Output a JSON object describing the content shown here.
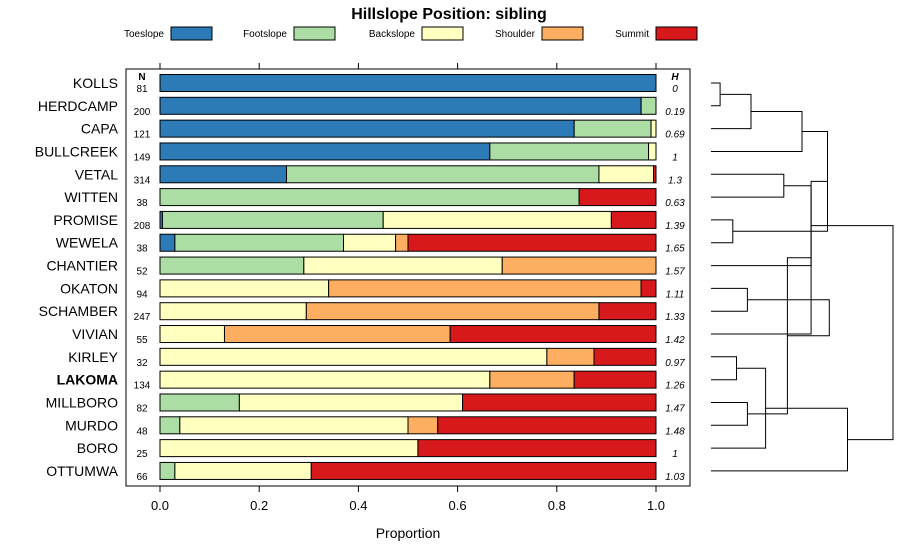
{
  "chart_data": {
    "type": "bar",
    "stacked": true,
    "orientation": "horizontal",
    "title": "Hillslope Position: sibling",
    "xlabel": "Proportion",
    "xlim": [
      0,
      1
    ],
    "xticks": [
      "0.0",
      "0.2",
      "0.4",
      "0.6",
      "0.8",
      "1.0"
    ],
    "n_header": "N",
    "h_header": "H",
    "legend_position": "top",
    "categories": [
      "KOLLS",
      "HERDCAMP",
      "CAPA",
      "BULLCREEK",
      "VETAL",
      "WITTEN",
      "PROMISE",
      "WEWELA",
      "CHANTIER",
      "OKATON",
      "SCHAMBER",
      "VIVIAN",
      "KIRLEY",
      "LAKOMA",
      "MILLBORO",
      "MURDO",
      "BORO",
      "OTTUMWA"
    ],
    "highlight": "LAKOMA",
    "n": [
      "81",
      "200",
      "121",
      "149",
      "314",
      "38",
      "208",
      "38",
      "52",
      "94",
      "247",
      "55",
      "32",
      "134",
      "82",
      "48",
      "25",
      "66"
    ],
    "h": [
      "0",
      "0.19",
      "0.69",
      "1",
      "1.3",
      "0.63",
      "1.39",
      "1.65",
      "1.57",
      "1.11",
      "1.33",
      "1.42",
      "0.97",
      "1.26",
      "1.47",
      "1.48",
      "1",
      "1.03"
    ],
    "series": [
      {
        "name": "Toeslope",
        "color": "#2c7bb6",
        "values": [
          1.0,
          0.97,
          0.835,
          0.665,
          0.255,
          0.0,
          0.005,
          0.03,
          0.0,
          0.0,
          0.0,
          0.0,
          0.0,
          0.0,
          0.0,
          0.0,
          0.0,
          0.0
        ]
      },
      {
        "name": "Footslope",
        "color": "#abdda4",
        "values": [
          0.0,
          0.03,
          0.155,
          0.32,
          0.63,
          0.845,
          0.445,
          0.34,
          0.29,
          0.0,
          0.0,
          0.0,
          0.0,
          0.0,
          0.16,
          0.04,
          0.0,
          0.03
        ]
      },
      {
        "name": "Backslope",
        "color": "#ffffbf",
        "values": [
          0.0,
          0.0,
          0.01,
          0.015,
          0.11,
          0.0,
          0.46,
          0.105,
          0.4,
          0.34,
          0.295,
          0.13,
          0.78,
          0.665,
          0.45,
          0.46,
          0.52,
          0.275
        ]
      },
      {
        "name": "Shoulder",
        "color": "#fdae61",
        "values": [
          0.0,
          0.0,
          0.0,
          0.0,
          0.0,
          0.0,
          0.0,
          0.025,
          0.31,
          0.63,
          0.59,
          0.455,
          0.095,
          0.17,
          0.0,
          0.06,
          0.0,
          0.0
        ]
      },
      {
        "name": "Summit",
        "color": "#d7191c",
        "values": [
          0.0,
          0.0,
          0.0,
          0.0,
          0.005,
          0.155,
          0.09,
          0.5,
          0.0,
          0.03,
          0.115,
          0.415,
          0.125,
          0.165,
          0.39,
          0.44,
          0.48,
          0.695
        ]
      }
    ],
    "dendrogram": {
      "type": "cluster",
      "orientation": "right",
      "leaf_order": [
        "KOLLS",
        "HERDCAMP",
        "CAPA",
        "BULLCREEK",
        "VETAL",
        "WITTEN",
        "PROMISE",
        "WEWELA",
        "CHANTIER",
        "OKATON",
        "SCHAMBER",
        "VIVIAN",
        "KIRLEY",
        "LAKOMA",
        "MILLBORO",
        "MURDO",
        "BORO",
        "OTTUMWA"
      ],
      "merges": [
        {
          "left": 0,
          "right": 1,
          "height": 0.05
        },
        {
          "left": -1,
          "right": 2,
          "height": 0.22
        },
        {
          "left": -2,
          "right": 3,
          "height": 0.5
        },
        {
          "left": 4,
          "right": 5,
          "height": 0.4
        },
        {
          "left": 6,
          "right": 7,
          "height": 0.12
        },
        {
          "left": -4,
          "right": 8,
          "height": 0.55
        },
        {
          "left": -3,
          "right": -5,
          "height": 0.64
        },
        {
          "left": 9,
          "right": 10,
          "height": 0.2
        },
        {
          "left": -7,
          "right": 11,
          "height": 0.55
        },
        {
          "left": 12,
          "right": 13,
          "height": 0.14
        },
        {
          "left": 14,
          "right": 15,
          "height": 0.2
        },
        {
          "left": -10,
          "right": 16,
          "height": 0.3
        },
        {
          "left": -9,
          "right": -11,
          "height": 0.42
        },
        {
          "left": -12,
          "right": 17,
          "height": 0.75
        },
        {
          "left": -8,
          "right": -13,
          "height": 0.65
        },
        {
          "left": -6,
          "right": -14,
          "height": 1.0
        }
      ]
    }
  }
}
